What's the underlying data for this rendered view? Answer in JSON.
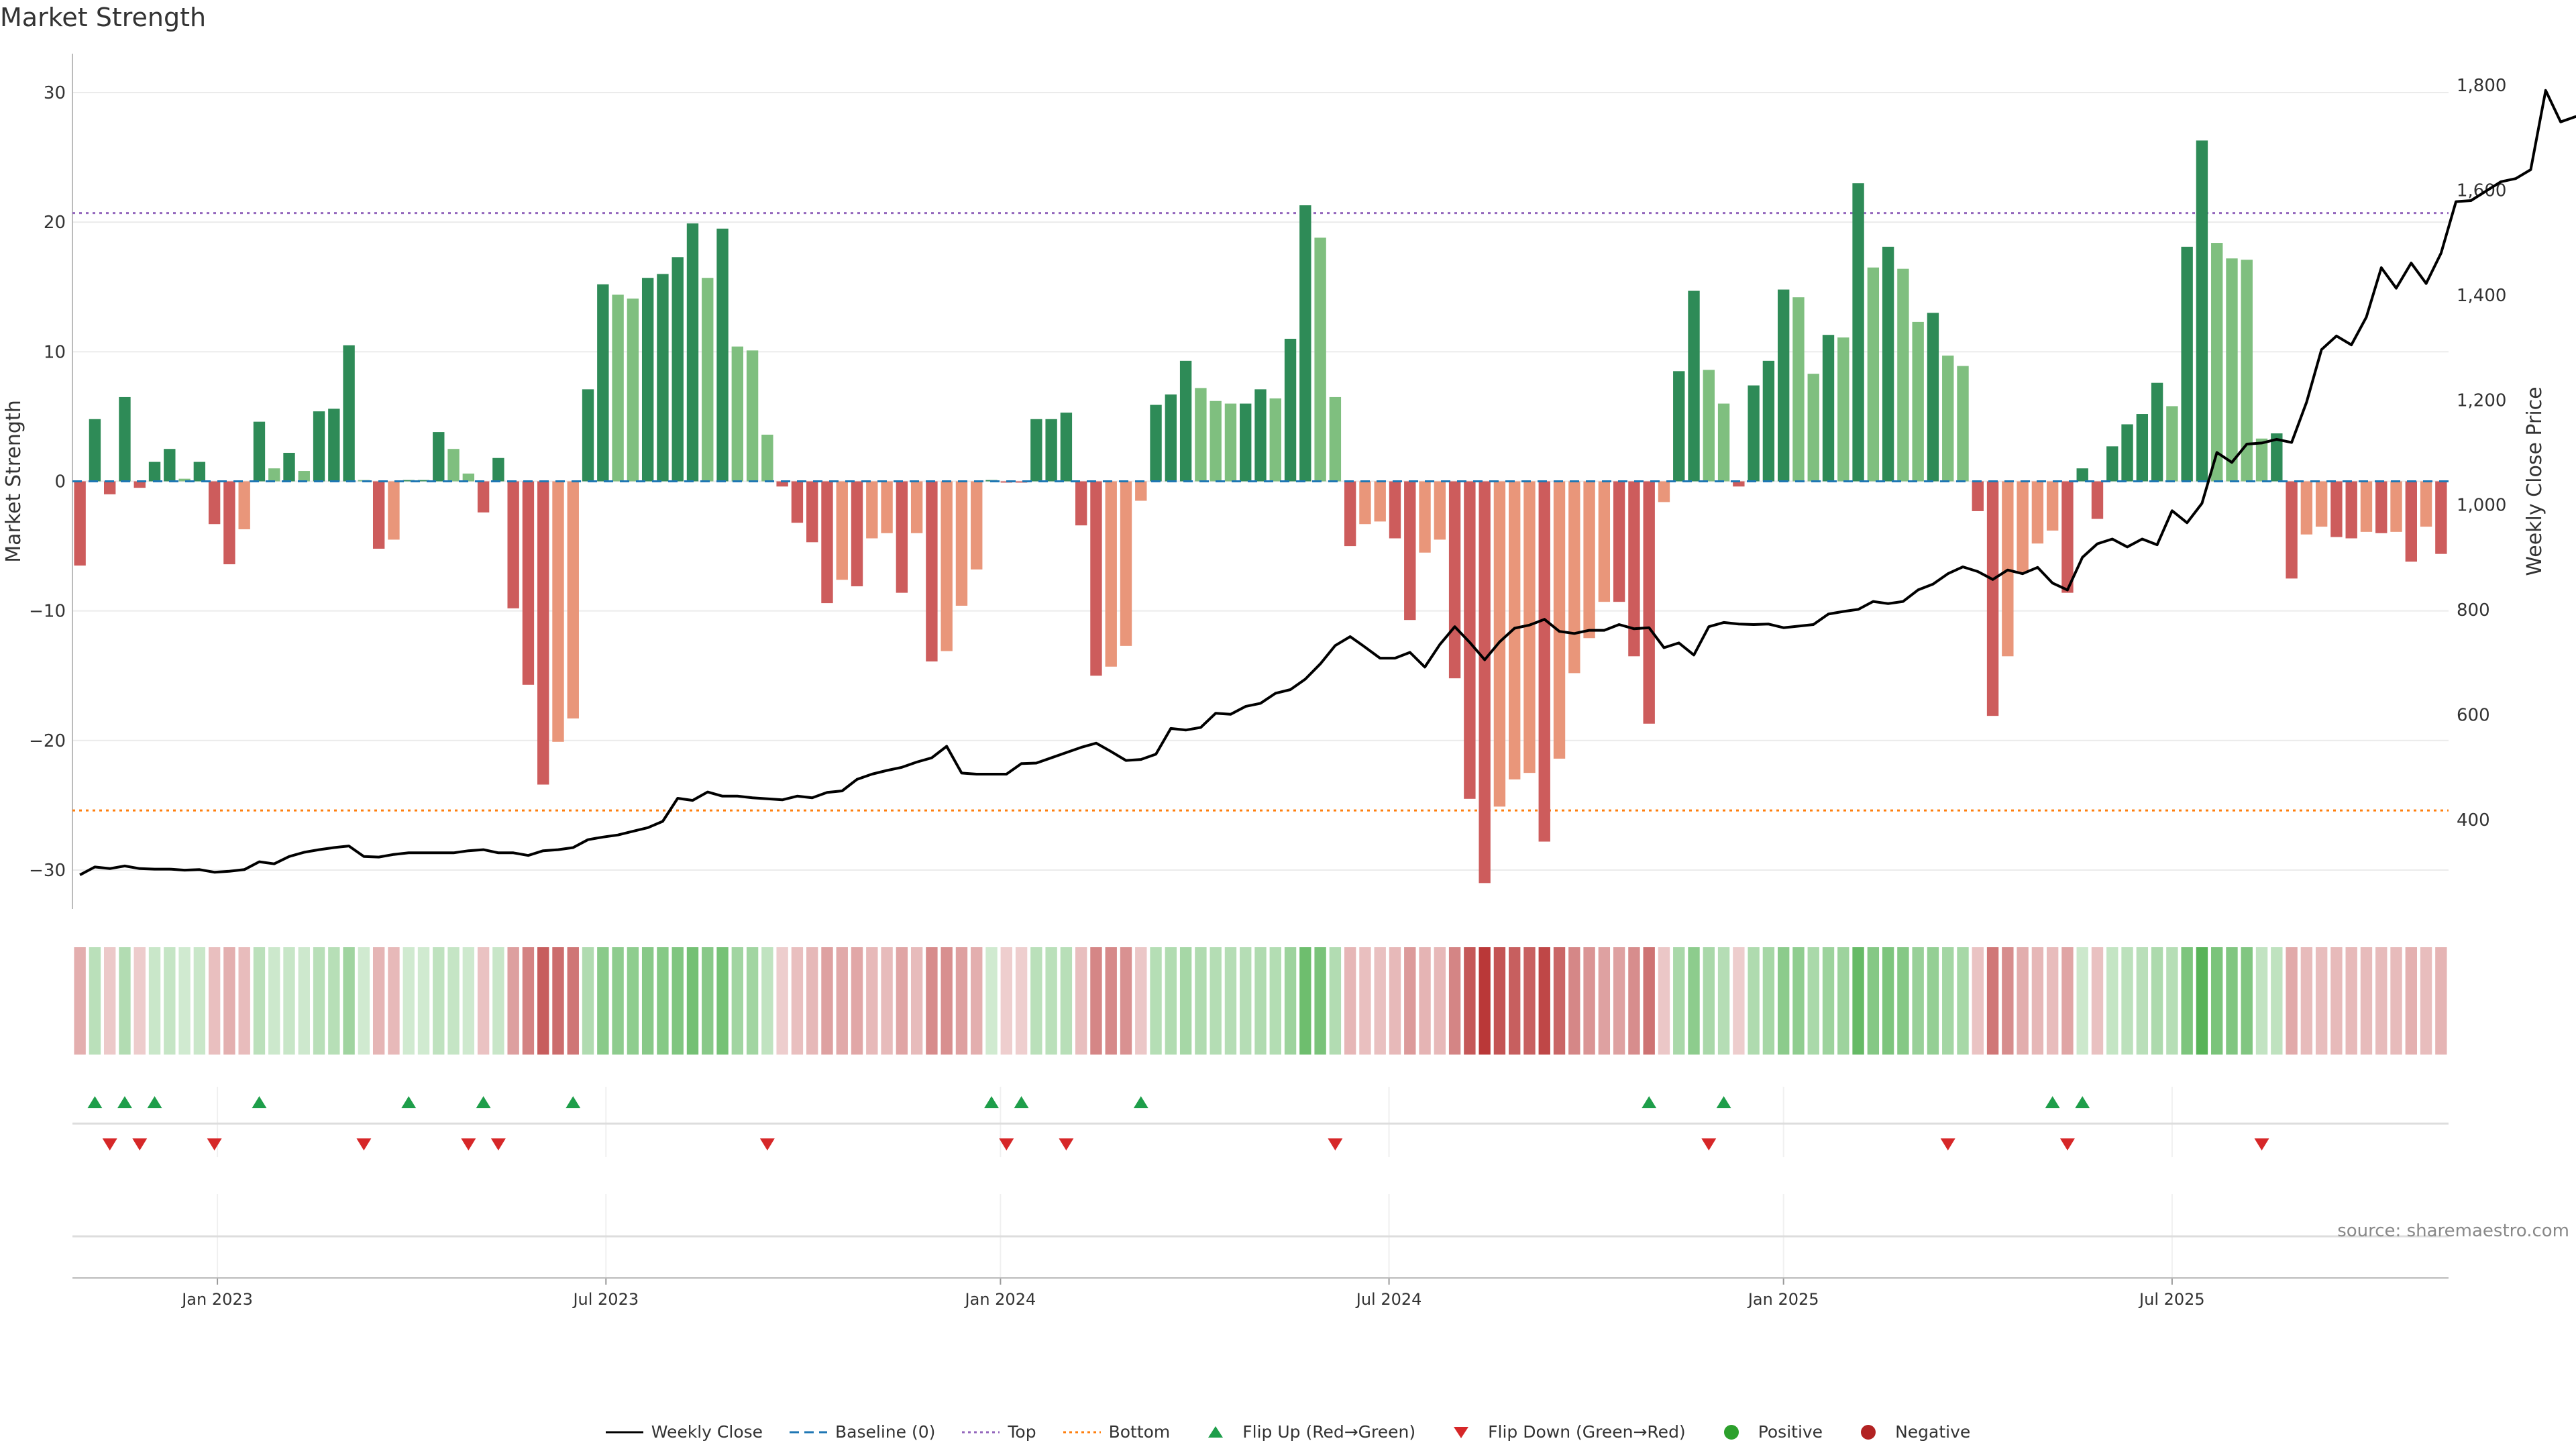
{
  "chart_data": {
    "type": "bar",
    "title": "Market Strength",
    "ylabel_left": "Market Strength",
    "ylabel_right": "Weekly Close Price",
    "y_left_range": [
      -33,
      33
    ],
    "y_left_ticks": [
      "30",
      "20",
      "10",
      "0",
      "−10",
      "−20",
      "−30"
    ],
    "y_left_tick_values": [
      30,
      20,
      10,
      0,
      -10,
      -20,
      -30
    ],
    "y_right_range": [
      230,
      1860
    ],
    "y_right_ticks": [
      "1,800",
      "1,600",
      "1,400",
      "1,200",
      "1,000",
      "800",
      "600",
      "400"
    ],
    "y_right_tick_values": [
      1800,
      1600,
      1400,
      1200,
      1000,
      800,
      600,
      400
    ],
    "top_line": 20.7,
    "bottom_line": -25.4,
    "x_ticks": [
      "Jan 2023",
      "Jul 2023",
      "Jan 2024",
      "Jul 2024",
      "Jan 2025",
      "Jul 2025"
    ],
    "x_tick_weeks": [
      9.2,
      35.2,
      61.6,
      87.6,
      114,
      140
    ],
    "strength": [
      -6.5,
      4.8,
      -1.0,
      6.5,
      -0.5,
      1.5,
      2.5,
      0.2,
      1.5,
      -3.3,
      -6.4,
      -3.7,
      4.6,
      1.0,
      2.2,
      0.8,
      5.4,
      5.6,
      10.5,
      0.1,
      -5.2,
      -4.5,
      0.1,
      0.1,
      3.8,
      2.5,
      0.6,
      -2.4,
      1.8,
      -9.8,
      -15.7,
      -23.4,
      -20.1,
      -18.3,
      7.1,
      15.2,
      14.4,
      14.1,
      15.7,
      16.0,
      17.3,
      19.9,
      15.7,
      19.5,
      10.4,
      10.1,
      3.6,
      -0.4,
      -3.2,
      -4.7,
      -9.4,
      -7.6,
      -8.1,
      -4.4,
      -4.0,
      -8.6,
      -4.0,
      -13.9,
      -13.1,
      -9.6,
      -6.8,
      0.1,
      -0.1,
      -0.1,
      4.8,
      4.8,
      5.3,
      -3.4,
      -15.0,
      -14.3,
      -12.7,
      -1.5,
      5.9,
      6.7,
      9.3,
      7.2,
      6.2,
      6.0,
      6.0,
      7.1,
      6.4,
      11.0,
      21.3,
      18.8,
      6.5,
      -5.0,
      -3.3,
      -3.1,
      -4.4,
      -10.7,
      -5.5,
      -4.5,
      -15.2,
      -24.5,
      -31.0,
      -25.1,
      -23.0,
      -22.5,
      -27.8,
      -21.4,
      -14.8,
      -12.1,
      -9.3,
      -9.3,
      -13.5,
      -18.7,
      -1.6,
      8.5,
      14.7,
      8.6,
      6.0,
      -0.4,
      7.4,
      9.3,
      14.8,
      14.2,
      8.3,
      11.3,
      11.1,
      23.0,
      16.5,
      18.1,
      16.4,
      12.3,
      13.0,
      9.7,
      8.9,
      -2.3,
      -18.1,
      -13.5,
      -7.0,
      -4.8,
      -3.8,
      -8.6,
      1.0,
      -2.9,
      2.7,
      4.4,
      5.2,
      7.6,
      5.8,
      18.1,
      26.3,
      18.4,
      17.2,
      17.1,
      3.3,
      3.7,
      -7.5,
      -4.1,
      -3.5,
      -4.3,
      -4.4,
      -3.9,
      -4.0,
      -3.9,
      -6.2,
      -3.5,
      -5.6
    ],
    "weekly_close": [
      295,
      310,
      307,
      312,
      307,
      306,
      306,
      304,
      305,
      300,
      302,
      305,
      320,
      316,
      330,
      338,
      343,
      347,
      350,
      330,
      329,
      334,
      337,
      337,
      337,
      337,
      341,
      343,
      337,
      337,
      332,
      341,
      343,
      347,
      362,
      367,
      371,
      378,
      385,
      397,
      441,
      437,
      453,
      445,
      445,
      442,
      440,
      438,
      445,
      442,
      452,
      455,
      477,
      487,
      494,
      500,
      510,
      518,
      540,
      489,
      487,
      487,
      487,
      507,
      508,
      518,
      528,
      538,
      546,
      530,
      513,
      515,
      525,
      574,
      571,
      576,
      603,
      601,
      616,
      622,
      641,
      648,
      668,
      697,
      732,
      749,
      729,
      708,
      708,
      719,
      691,
      734,
      768,
      738,
      705,
      739,
      765,
      771,
      782,
      759,
      755,
      761,
      761,
      772,
      764,
      766,
      728,
      737,
      714,
      768,
      776,
      773,
      772,
      773,
      766,
      769,
      772,
      792,
      797,
      801,
      816,
      812,
      816,
      838,
      849,
      869,
      882,
      873,
      858,
      876,
      869,
      881,
      851,
      838,
      900,
      926,
      935,
      920,
      935,
      924,
      989,
      966,
      1003,
      1100,
      1081,
      1116,
      1118,
      1125,
      1119,
      1196,
      1296,
      1322,
      1305,
      1358,
      1452,
      1413,
      1461,
      1422,
      1480,
      1578,
      1580,
      1598,
      1616,
      1622,
      1639,
      1790,
      1730,
      1740,
      1733
    ],
    "flip_up_weeks": [
      1,
      3,
      5,
      12,
      22,
      27,
      33,
      61,
      63,
      71,
      105,
      110,
      132,
      134
    ],
    "flip_down_weeks": [
      2,
      4,
      9,
      19,
      26,
      28,
      46,
      62,
      66,
      84,
      109,
      125,
      133,
      146
    ],
    "colors": {
      "positive_strong": "#2e8b57",
      "positive_weak": "#7fbf7f",
      "negative_strong": "#cd5c5c",
      "negative_weak": "#e9967a",
      "price_line": "#000000",
      "baseline": "#1f77b4",
      "top": "#9467bd",
      "bottom": "#ff7f0e",
      "flip_up": "#1e9e4a",
      "flip_down": "#d62728"
    }
  },
  "legend": [
    {
      "label": "Weekly Close",
      "kind": "line",
      "color": "#000000"
    },
    {
      "label": "Baseline (0)",
      "kind": "dash",
      "color": "#1f77b4"
    },
    {
      "label": "Top",
      "kind": "dot",
      "color": "#9467bd"
    },
    {
      "label": "Bottom",
      "kind": "dot",
      "color": "#ff7f0e"
    },
    {
      "label": "Flip Up (Red→Green)",
      "kind": "tri-up",
      "color": "#1e9e4a"
    },
    {
      "label": "Flip Down (Green→Red)",
      "kind": "tri-down",
      "color": "#d62728"
    },
    {
      "label": "Positive",
      "kind": "circle",
      "color": "#2ca02c"
    },
    {
      "label": "Negative",
      "kind": "circle",
      "color": "#b22222"
    }
  ],
  "source": "source: sharemaestro.com"
}
